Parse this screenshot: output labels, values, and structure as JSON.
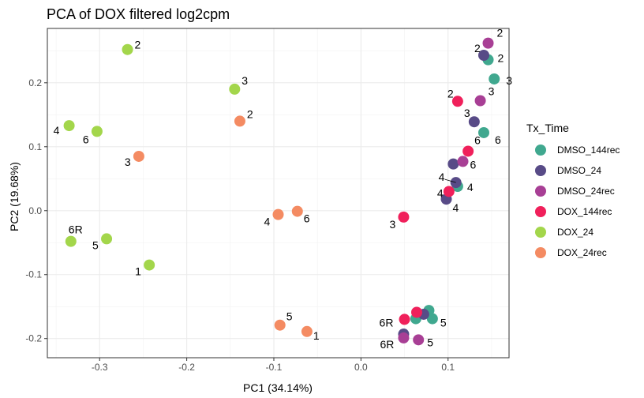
{
  "chart_data": {
    "type": "scatter",
    "title": "PCA of DOX filtered log2cpm",
    "xlabel": "PC1 (34.14%)",
    "ylabel": "PC2 (19.68%)",
    "xlim": [
      -0.36,
      0.17
    ],
    "ylim": [
      -0.23,
      0.285
    ],
    "xticks": [
      -0.3,
      -0.2,
      -0.1,
      0.0,
      0.1
    ],
    "xtick_labels": [
      "-0.3",
      "-0.2",
      "-0.1",
      "0.0",
      "0.1"
    ],
    "yticks": [
      -0.2,
      -0.1,
      0.0,
      0.1,
      0.2
    ],
    "ytick_labels": [
      "-0.2",
      "-0.1",
      "0.0",
      "0.1",
      "0.2"
    ],
    "grid": true,
    "legend_position": "right",
    "legend_title": "Tx_Time",
    "series": [
      {
        "name": "DMSO_144rec",
        "color": "#40a88f",
        "points": [
          {
            "x": 0.146,
            "y": 0.236,
            "label": "2"
          },
          {
            "x": 0.153,
            "y": 0.206,
            "label": "3"
          },
          {
            "x": 0.141,
            "y": 0.122,
            "label": "6"
          },
          {
            "x": 0.111,
            "y": 0.038,
            "label": "4"
          },
          {
            "x": 0.078,
            "y": -0.156,
            "label": ""
          },
          {
            "x": 0.082,
            "y": -0.169,
            "label": "5"
          },
          {
            "x": 0.063,
            "y": -0.169,
            "label": ""
          }
        ]
      },
      {
        "name": "DMSO_24",
        "color": "#584b87",
        "points": [
          {
            "x": 0.141,
            "y": 0.243,
            "label": "2"
          },
          {
            "x": 0.13,
            "y": 0.139,
            "label": "3"
          },
          {
            "x": 0.106,
            "y": 0.073,
            "label": ""
          },
          {
            "x": 0.109,
            "y": 0.044,
            "label": "4"
          },
          {
            "x": 0.098,
            "y": 0.018,
            "label": "4"
          },
          {
            "x": 0.072,
            "y": -0.162,
            "label": ""
          },
          {
            "x": 0.049,
            "y": -0.193,
            "label": ""
          }
        ]
      },
      {
        "name": "DMSO_24rec",
        "color": "#a83f95",
        "points": [
          {
            "x": 0.146,
            "y": 0.262,
            "label": "2"
          },
          {
            "x": 0.137,
            "y": 0.172,
            "label": "3"
          },
          {
            "x": 0.117,
            "y": 0.077,
            "label": "6"
          },
          {
            "x": 0.049,
            "y": -0.199,
            "label": "6R"
          },
          {
            "x": 0.066,
            "y": -0.202,
            "label": "5"
          }
        ]
      },
      {
        "name": "DOX_144rec",
        "color": "#f0205b",
        "points": [
          {
            "x": 0.111,
            "y": 0.171,
            "label": "2"
          },
          {
            "x": 0.123,
            "y": 0.093,
            "label": "6"
          },
          {
            "x": 0.101,
            "y": 0.03,
            "label": "4"
          },
          {
            "x": 0.049,
            "y": -0.01,
            "label": "3"
          },
          {
            "x": 0.064,
            "y": -0.159,
            "label": ""
          },
          {
            "x": 0.05,
            "y": -0.17,
            "label": "6R"
          }
        ]
      },
      {
        "name": "DOX_24",
        "color": "#a3d64b",
        "points": [
          {
            "x": -0.268,
            "y": 0.252,
            "label": "2"
          },
          {
            "x": -0.145,
            "y": 0.19,
            "label": "3"
          },
          {
            "x": -0.335,
            "y": 0.133,
            "label": "4"
          },
          {
            "x": -0.303,
            "y": 0.124,
            "label": "6"
          },
          {
            "x": -0.292,
            "y": -0.044,
            "label": "5"
          },
          {
            "x": -0.333,
            "y": -0.048,
            "label": "6R"
          },
          {
            "x": -0.243,
            "y": -0.085,
            "label": "1"
          }
        ]
      },
      {
        "name": "DOX_24rec",
        "color": "#f48b62",
        "points": [
          {
            "x": -0.139,
            "y": 0.14,
            "label": "2"
          },
          {
            "x": -0.255,
            "y": 0.085,
            "label": "3"
          },
          {
            "x": -0.095,
            "y": -0.006,
            "label": "4"
          },
          {
            "x": -0.073,
            "y": -0.001,
            "label": "6"
          },
          {
            "x": -0.093,
            "y": -0.179,
            "label": "5"
          },
          {
            "x": -0.062,
            "y": -0.189,
            "label": "1"
          }
        ]
      }
    ]
  }
}
